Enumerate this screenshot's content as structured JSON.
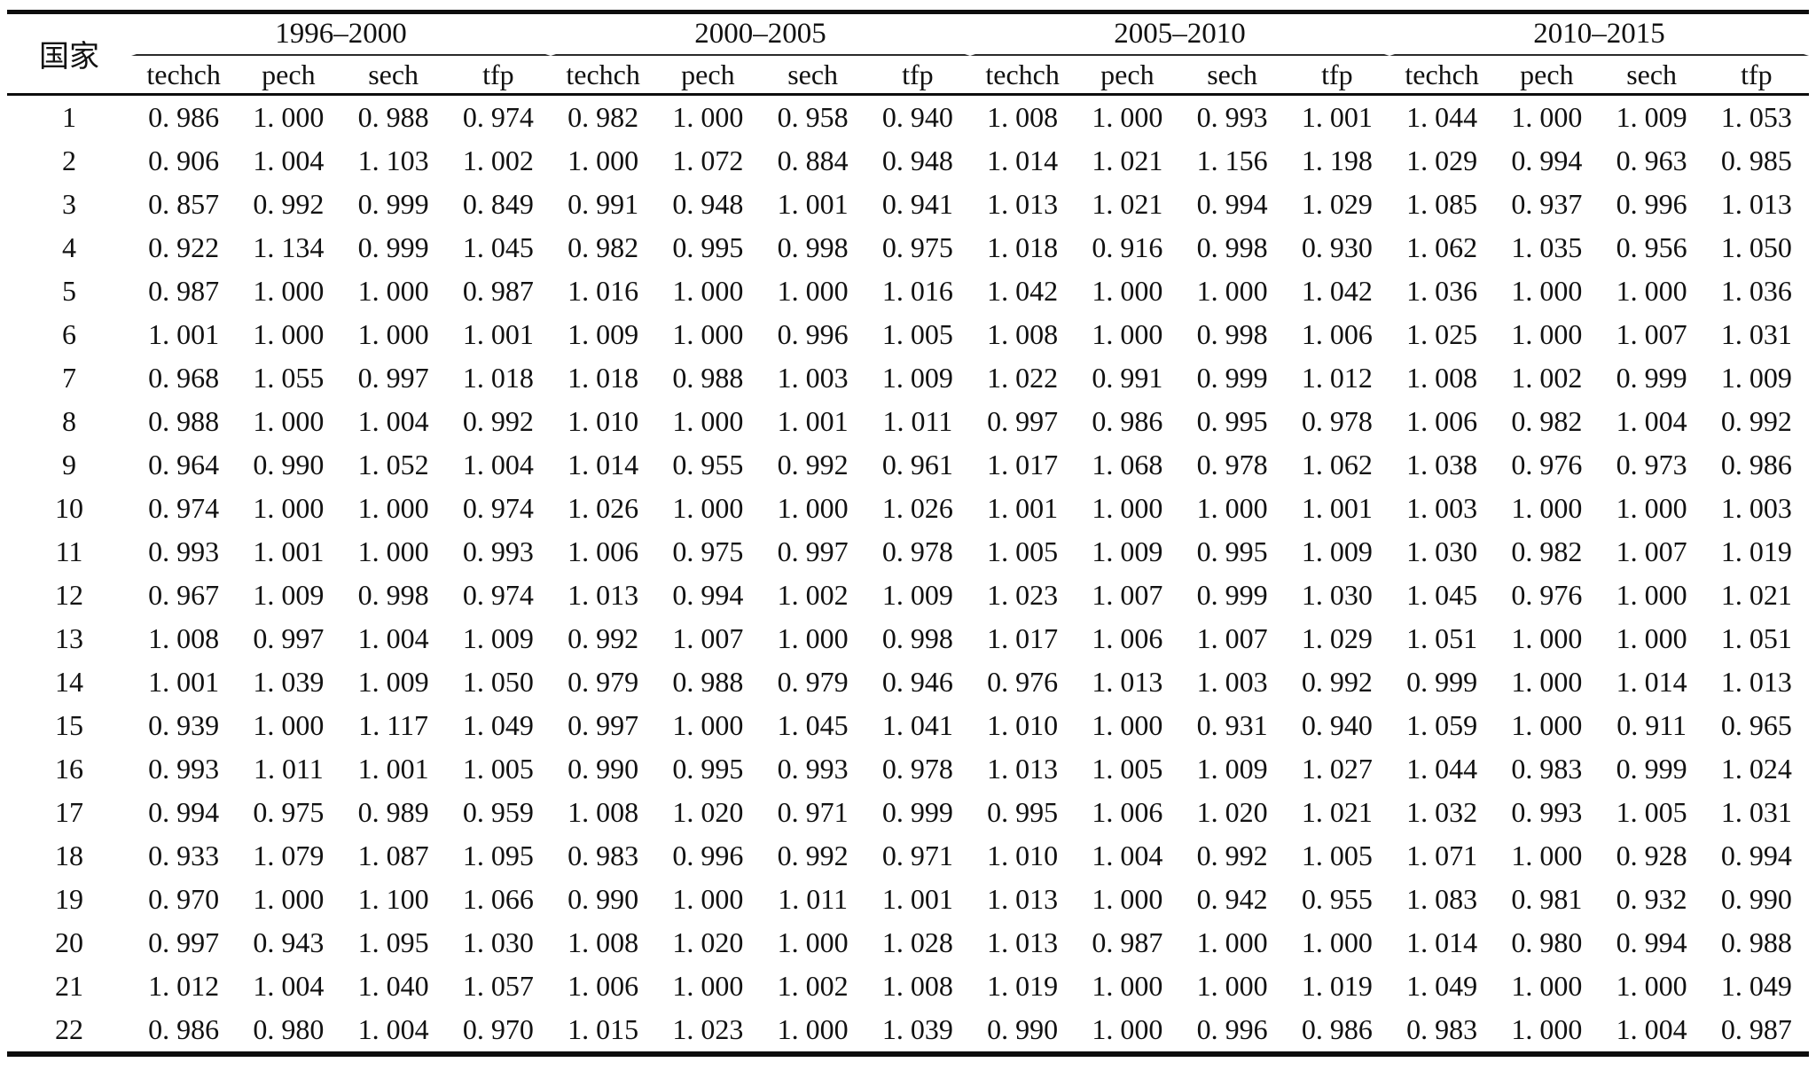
{
  "table": {
    "corner_label": "国家",
    "periods": [
      {
        "label": "1996–2000"
      },
      {
        "label": "2000–2005"
      },
      {
        "label": "2005–2010"
      },
      {
        "label": "2010–2015"
      }
    ],
    "sub_columns": [
      "techch",
      "pech",
      "sech",
      "tfp"
    ],
    "rows": [
      {
        "country": "1",
        "values": [
          [
            "0.986",
            "1.000",
            "0.988",
            "0.974"
          ],
          [
            "0.982",
            "1.000",
            "0.958",
            "0.940"
          ],
          [
            "1.008",
            "1.000",
            "0.993",
            "1.001"
          ],
          [
            "1.044",
            "1.000",
            "1.009",
            "1.053"
          ]
        ]
      },
      {
        "country": "2",
        "values": [
          [
            "0.906",
            "1.004",
            "1.103",
            "1.002"
          ],
          [
            "1.000",
            "1.072",
            "0.884",
            "0.948"
          ],
          [
            "1.014",
            "1.021",
            "1.156",
            "1.198"
          ],
          [
            "1.029",
            "0.994",
            "0.963",
            "0.985"
          ]
        ]
      },
      {
        "country": "3",
        "values": [
          [
            "0.857",
            "0.992",
            "0.999",
            "0.849"
          ],
          [
            "0.991",
            "0.948",
            "1.001",
            "0.941"
          ],
          [
            "1.013",
            "1.021",
            "0.994",
            "1.029"
          ],
          [
            "1.085",
            "0.937",
            "0.996",
            "1.013"
          ]
        ]
      },
      {
        "country": "4",
        "values": [
          [
            "0.922",
            "1.134",
            "0.999",
            "1.045"
          ],
          [
            "0.982",
            "0.995",
            "0.998",
            "0.975"
          ],
          [
            "1.018",
            "0.916",
            "0.998",
            "0.930"
          ],
          [
            "1.062",
            "1.035",
            "0.956",
            "1.050"
          ]
        ]
      },
      {
        "country": "5",
        "values": [
          [
            "0.987",
            "1.000",
            "1.000",
            "0.987"
          ],
          [
            "1.016",
            "1.000",
            "1.000",
            "1.016"
          ],
          [
            "1.042",
            "1.000",
            "1.000",
            "1.042"
          ],
          [
            "1.036",
            "1.000",
            "1.000",
            "1.036"
          ]
        ]
      },
      {
        "country": "6",
        "values": [
          [
            "1.001",
            "1.000",
            "1.000",
            "1.001"
          ],
          [
            "1.009",
            "1.000",
            "0.996",
            "1.005"
          ],
          [
            "1.008",
            "1.000",
            "0.998",
            "1.006"
          ],
          [
            "1.025",
            "1.000",
            "1.007",
            "1.031"
          ]
        ]
      },
      {
        "country": "7",
        "values": [
          [
            "0.968",
            "1.055",
            "0.997",
            "1.018"
          ],
          [
            "1.018",
            "0.988",
            "1.003",
            "1.009"
          ],
          [
            "1.022",
            "0.991",
            "0.999",
            "1.012"
          ],
          [
            "1.008",
            "1.002",
            "0.999",
            "1.009"
          ]
        ]
      },
      {
        "country": "8",
        "values": [
          [
            "0.988",
            "1.000",
            "1.004",
            "0.992"
          ],
          [
            "1.010",
            "1.000",
            "1.001",
            "1.011"
          ],
          [
            "0.997",
            "0.986",
            "0.995",
            "0.978"
          ],
          [
            "1.006",
            "0.982",
            "1.004",
            "0.992"
          ]
        ]
      },
      {
        "country": "9",
        "values": [
          [
            "0.964",
            "0.990",
            "1.052",
            "1.004"
          ],
          [
            "1.014",
            "0.955",
            "0.992",
            "0.961"
          ],
          [
            "1.017",
            "1.068",
            "0.978",
            "1.062"
          ],
          [
            "1.038",
            "0.976",
            "0.973",
            "0.986"
          ]
        ]
      },
      {
        "country": "10",
        "values": [
          [
            "0.974",
            "1.000",
            "1.000",
            "0.974"
          ],
          [
            "1.026",
            "1.000",
            "1.000",
            "1.026"
          ],
          [
            "1.001",
            "1.000",
            "1.000",
            "1.001"
          ],
          [
            "1.003",
            "1.000",
            "1.000",
            "1.003"
          ]
        ]
      },
      {
        "country": "11",
        "values": [
          [
            "0.993",
            "1.001",
            "1.000",
            "0.993"
          ],
          [
            "1.006",
            "0.975",
            "0.997",
            "0.978"
          ],
          [
            "1.005",
            "1.009",
            "0.995",
            "1.009"
          ],
          [
            "1.030",
            "0.982",
            "1.007",
            "1.019"
          ]
        ]
      },
      {
        "country": "12",
        "values": [
          [
            "0.967",
            "1.009",
            "0.998",
            "0.974"
          ],
          [
            "1.013",
            "0.994",
            "1.002",
            "1.009"
          ],
          [
            "1.023",
            "1.007",
            "0.999",
            "1.030"
          ],
          [
            "1.045",
            "0.976",
            "1.000",
            "1.021"
          ]
        ]
      },
      {
        "country": "13",
        "values": [
          [
            "1.008",
            "0.997",
            "1.004",
            "1.009"
          ],
          [
            "0.992",
            "1.007",
            "1.000",
            "0.998"
          ],
          [
            "1.017",
            "1.006",
            "1.007",
            "1.029"
          ],
          [
            "1.051",
            "1.000",
            "1.000",
            "1.051"
          ]
        ]
      },
      {
        "country": "14",
        "values": [
          [
            "1.001",
            "1.039",
            "1.009",
            "1.050"
          ],
          [
            "0.979",
            "0.988",
            "0.979",
            "0.946"
          ],
          [
            "0.976",
            "1.013",
            "1.003",
            "0.992"
          ],
          [
            "0.999",
            "1.000",
            "1.014",
            "1.013"
          ]
        ]
      },
      {
        "country": "15",
        "values": [
          [
            "0.939",
            "1.000",
            "1.117",
            "1.049"
          ],
          [
            "0.997",
            "1.000",
            "1.045",
            "1.041"
          ],
          [
            "1.010",
            "1.000",
            "0.931",
            "0.940"
          ],
          [
            "1.059",
            "1.000",
            "0.911",
            "0.965"
          ]
        ]
      },
      {
        "country": "16",
        "values": [
          [
            "0.993",
            "1.011",
            "1.001",
            "1.005"
          ],
          [
            "0.990",
            "0.995",
            "0.993",
            "0.978"
          ],
          [
            "1.013",
            "1.005",
            "1.009",
            "1.027"
          ],
          [
            "1.044",
            "0.983",
            "0.999",
            "1.024"
          ]
        ]
      },
      {
        "country": "17",
        "values": [
          [
            "0.994",
            "0.975",
            "0.989",
            "0.959"
          ],
          [
            "1.008",
            "1.020",
            "0.971",
            "0.999"
          ],
          [
            "0.995",
            "1.006",
            "1.020",
            "1.021"
          ],
          [
            "1.032",
            "0.993",
            "1.005",
            "1.031"
          ]
        ]
      },
      {
        "country": "18",
        "values": [
          [
            "0.933",
            "1.079",
            "1.087",
            "1.095"
          ],
          [
            "0.983",
            "0.996",
            "0.992",
            "0.971"
          ],
          [
            "1.010",
            "1.004",
            "0.992",
            "1.005"
          ],
          [
            "1.071",
            "1.000",
            "0.928",
            "0.994"
          ]
        ]
      },
      {
        "country": "19",
        "values": [
          [
            "0.970",
            "1.000",
            "1.100",
            "1.066"
          ],
          [
            "0.990",
            "1.000",
            "1.011",
            "1.001"
          ],
          [
            "1.013",
            "1.000",
            "0.942",
            "0.955"
          ],
          [
            "1.083",
            "0.981",
            "0.932",
            "0.990"
          ]
        ]
      },
      {
        "country": "20",
        "values": [
          [
            "0.997",
            "0.943",
            "1.095",
            "1.030"
          ],
          [
            "1.008",
            "1.020",
            "1.000",
            "1.028"
          ],
          [
            "1.013",
            "0.987",
            "1.000",
            "1.000"
          ],
          [
            "1.014",
            "0.980",
            "0.994",
            "0.988"
          ]
        ]
      },
      {
        "country": "21",
        "values": [
          [
            "1.012",
            "1.004",
            "1.040",
            "1.057"
          ],
          [
            "1.006",
            "1.000",
            "1.002",
            "1.008"
          ],
          [
            "1.019",
            "1.000",
            "1.000",
            "1.019"
          ],
          [
            "1.049",
            "1.000",
            "1.000",
            "1.049"
          ]
        ]
      },
      {
        "country": "22",
        "values": [
          [
            "0.986",
            "0.980",
            "1.004",
            "0.970"
          ],
          [
            "1.015",
            "1.023",
            "1.000",
            "1.039"
          ],
          [
            "0.990",
            "1.000",
            "0.996",
            "0.986"
          ],
          [
            "0.983",
            "1.000",
            "1.004",
            "0.987"
          ]
        ]
      }
    ]
  }
}
